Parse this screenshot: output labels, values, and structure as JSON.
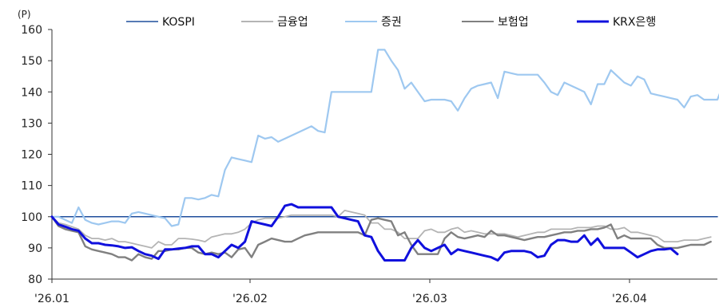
{
  "chart_data": {
    "type": "line",
    "unit_label": "(P)",
    "ylim": [
      80,
      160
    ],
    "y_ticks": [
      "80",
      "90",
      "100",
      "110",
      "120",
      "130",
      "140",
      "150",
      "160"
    ],
    "x_ticks": [
      "'26.01",
      "'26.02",
      "'26.03",
      "'26.04"
    ],
    "legend_position": "top",
    "grid": false,
    "series": [
      {
        "name": "KOSPI",
        "color": "#1f4e9c",
        "values": [
          100,
          100,
          100,
          100,
          100,
          100,
          100,
          100,
          100,
          100,
          100,
          100,
          100,
          100,
          100,
          100,
          100,
          100,
          100,
          100,
          100,
          100,
          100,
          100,
          100,
          100,
          100,
          100,
          100,
          100,
          100,
          100,
          100,
          100,
          100,
          100,
          100,
          100,
          100,
          100,
          100,
          100,
          100,
          100,
          100,
          100,
          100,
          100,
          100,
          100,
          100,
          100,
          100,
          100,
          100,
          100,
          100,
          100,
          100,
          100,
          100,
          100,
          100,
          100,
          100,
          100,
          100,
          100,
          100,
          100,
          100,
          100,
          100,
          100,
          100,
          100,
          100,
          100,
          100,
          100,
          100,
          100,
          100,
          100,
          100,
          100,
          100,
          100,
          100,
          100,
          100,
          100,
          100,
          100,
          100,
          100,
          100,
          100,
          100,
          100,
          100
        ]
      },
      {
        "name": "금융업",
        "color": "#b4b4b4",
        "values": [
          100,
          98,
          97.5,
          96.8,
          96,
          94,
          93,
          93,
          92.5,
          93,
          92,
          92,
          91.5,
          91,
          90.5,
          90,
          92,
          91,
          91,
          93,
          93,
          92.8,
          92.5,
          92,
          93.5,
          94,
          94.5,
          94.5,
          95,
          96,
          98,
          99,
          99.5,
          99.5,
          99.5,
          100,
          100.5,
          100.5,
          100.5,
          100.5,
          100.5,
          100.5,
          100.5,
          100,
          102,
          101.5,
          101,
          100.5,
          98,
          98,
          96,
          96,
          95,
          93,
          93,
          93,
          95.5,
          96,
          95,
          95,
          96,
          96.5,
          95,
          95.5,
          95,
          94.5,
          94.5,
          94.5,
          94.5,
          94,
          93.5,
          94,
          94.5,
          95,
          95,
          96,
          96,
          96,
          96,
          96.5,
          96.5,
          96.5,
          97,
          97,
          96,
          96,
          96.5,
          95,
          95,
          94.5,
          94,
          93.5,
          92,
          92,
          92,
          92.5,
          92.5,
          92.5,
          93,
          93.5
        ]
      },
      {
        "name": "증권",
        "color": "#9ec8f0",
        "values": [
          100,
          100,
          99,
          98,
          103,
          99,
          98,
          97.5,
          98,
          98.5,
          98.5,
          98,
          101,
          101.5,
          101,
          100.5,
          100,
          99.5,
          97,
          97.5,
          106,
          106,
          105.5,
          106,
          107,
          106.5,
          115,
          119,
          118.5,
          118,
          117.5,
          126,
          125,
          125.5,
          124,
          125,
          126,
          127,
          128,
          129,
          127.5,
          127,
          140,
          140,
          140,
          140,
          140,
          140,
          140,
          153.5,
          153.5,
          150,
          147,
          141,
          143,
          140,
          137,
          137.5,
          137.5,
          137.5,
          137,
          134,
          138,
          141,
          142,
          142.5,
          143,
          138,
          146.5,
          146,
          145.5,
          145.5,
          145.5,
          145.5,
          143,
          140,
          139,
          143,
          142,
          141,
          140,
          136,
          142.5,
          142.5,
          147,
          145,
          143,
          142,
          145,
          144,
          139.5,
          139,
          138.5,
          138,
          137.5,
          135,
          138.5,
          139,
          137.5,
          137.5,
          137.5,
          143
        ]
      },
      {
        "name": "보험업",
        "color": "#808080",
        "values": [
          100,
          97,
          96,
          95.5,
          95,
          90.5,
          89.5,
          89,
          88.5,
          88,
          87,
          87,
          86,
          88,
          87,
          86.5,
          89,
          89,
          89.5,
          89.5,
          90,
          90,
          88.5,
          88,
          88.5,
          88,
          88.5,
          87,
          89.5,
          90,
          87,
          91,
          92,
          93,
          92.5,
          92,
          92,
          93,
          94,
          94.5,
          95,
          95,
          95,
          95,
          95,
          95,
          95,
          94,
          99,
          99.5,
          99,
          98.5,
          94,
          95,
          91,
          88,
          88,
          88,
          88,
          93,
          95,
          93.5,
          93,
          93.5,
          94,
          93.5,
          95.5,
          94,
          94,
          93.5,
          93,
          92.5,
          93,
          93.5,
          93.5,
          94,
          94.5,
          95,
          95,
          95.5,
          95.5,
          96,
          96,
          96.5,
          97.5,
          93,
          94,
          93,
          93,
          93,
          93,
          91,
          90,
          90,
          90,
          90.5,
          91,
          91,
          91,
          92
        ]
      },
      {
        "name": "KRX은행",
        "color": "#1010dd",
        "values": [
          100,
          97.5,
          96.8,
          96,
          95.5,
          93,
          91.5,
          91.5,
          91,
          90.8,
          90.5,
          90,
          90.2,
          89,
          88,
          87.5,
          86.5,
          89.5,
          89.5,
          89.8,
          90,
          90.5,
          90.5,
          88,
          88,
          87,
          89,
          91,
          90,
          92,
          98.5,
          98,
          97.5,
          97,
          100,
          103.5,
          104,
          103,
          103,
          103,
          103,
          103,
          103,
          100,
          99.5,
          99,
          98.5,
          94,
          93.5,
          89,
          86,
          86,
          86,
          86,
          90,
          92.5,
          90,
          89,
          90,
          91,
          88,
          89.5,
          89,
          88.5,
          88,
          87.5,
          87,
          86,
          88.5,
          89,
          89,
          89,
          88.5,
          87,
          87.5,
          91,
          92.5,
          92.5,
          92,
          92,
          94,
          91,
          93,
          90,
          90,
          90,
          90,
          88.5,
          87,
          88,
          89,
          89.5,
          89.5,
          89.8,
          88
        ]
      }
    ]
  }
}
